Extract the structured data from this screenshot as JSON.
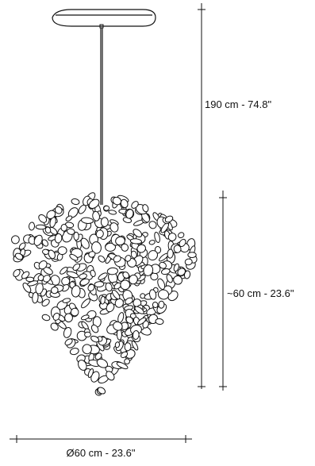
{
  "diagram": {
    "height_total_label": "190 cm - 74.8\"",
    "height_body_label": "~60 cm - 23.6\"",
    "diameter_label": "Ø60 cm - 23.6\""
  },
  "colors": {
    "line": "#111111",
    "background": "#ffffff"
  }
}
